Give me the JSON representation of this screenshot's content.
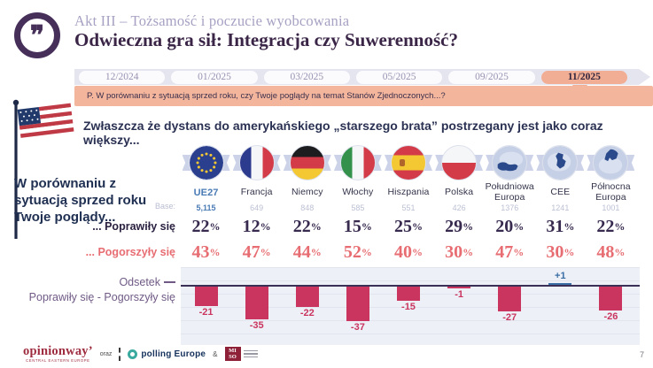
{
  "header": {
    "quote_glyph": "❞",
    "kicker": "Akt III – Tożsamość i poczucie wyobcowania",
    "title": "Odwieczna gra sił: Integracja czy Suwerenność?"
  },
  "timeline": {
    "tabs": [
      "12/2024",
      "01/2025",
      "03/2025",
      "05/2025",
      "09/2025",
      "11/2025"
    ],
    "active_tab": "11/2025"
  },
  "question": "P. W porównaniu z sytuacją sprzed roku, czy Twoje poglądy na temat Stanów Zjednoczonych...?",
  "headline": "Zwłaszcza że dystans do amerykańskiego „starszego brata” postrzegany jest jako coraz większy...",
  "side_note": "W porównaniu z\nsytuacją sprzed roku\nTwoje poglądy...",
  "table": {
    "base_label": "Base:",
    "improved_label": "... Poprawiły się",
    "worsened_label": "... Pogorszyły się",
    "columns": [
      {
        "name": "UE27",
        "flag": "eu-flag",
        "base": "5,115",
        "improved": "22%",
        "worsened": "43%"
      },
      {
        "name": "Francja",
        "flag": "france-flag",
        "base": "649",
        "improved": "12%",
        "worsened": "47%"
      },
      {
        "name": "Niemcy",
        "flag": "germany-flag",
        "base": "848",
        "improved": "22%",
        "worsened": "44%"
      },
      {
        "name": "Włochy",
        "flag": "italy-flag",
        "base": "585",
        "improved": "15%",
        "worsened": "52%"
      },
      {
        "name": "Hiszpania",
        "flag": "spain-flag",
        "base": "551",
        "improved": "25%",
        "worsened": "40%"
      },
      {
        "name": "Polska",
        "flag": "poland-flag",
        "base": "426",
        "improved": "29%",
        "worsened": "30%"
      },
      {
        "name": "Południowa Europa",
        "flag": "south-europe-map",
        "base": "1376",
        "improved": "20%",
        "worsened": "47%"
      },
      {
        "name": "CEE",
        "flag": "cee-map",
        "base": "1241",
        "improved": "31%",
        "worsened": "30%"
      },
      {
        "name": "Północna Europa",
        "flag": "north-europe-map",
        "base": "1001",
        "improved": "22%",
        "worsened": "48%"
      }
    ]
  },
  "chart_data": {
    "type": "bar",
    "title": "Odsetek Poprawiły się - Pogorszyły się",
    "categories": [
      "UE27",
      "Francja",
      "Niemcy",
      "Włochy",
      "Hiszpania",
      "Polska",
      "Południowa Europa",
      "CEE",
      "Północna Europa"
    ],
    "values": [
      -21,
      -35,
      -22,
      -37,
      -15,
      -1,
      -27,
      1,
      -26
    ],
    "labels": [
      "-21",
      "-35",
      "-22",
      "-37",
      "-15",
      "-1",
      "-27",
      "+1",
      "-26"
    ],
    "ylim": [
      -45,
      10
    ],
    "grid": true,
    "negative_color": "#c9355e",
    "positive_color": "#3a6ea5"
  },
  "diff_label": {
    "line1": "Odsetek",
    "line2": "Poprawiły się - Pogorszyły się"
  },
  "footer": {
    "logo_opinionway": "opinionway’",
    "logo_opinionway_sub": "CENTRAL EASTERN EUROPE",
    "conjunction": "oraz",
    "logo_polling": "polling Europe",
    "ampersand": "&",
    "logo_miso_line1": "MI",
    "logo_miso_line2": "SO",
    "page_number": "7"
  },
  "colors": {
    "accent_salmon": "#f3b69d",
    "bar_negative": "#c9355e",
    "bar_positive": "#3a6ea5",
    "title_purple": "#3a2547",
    "worsened_red": "#e76d72",
    "highlight_blue": "#4a7bb5"
  }
}
